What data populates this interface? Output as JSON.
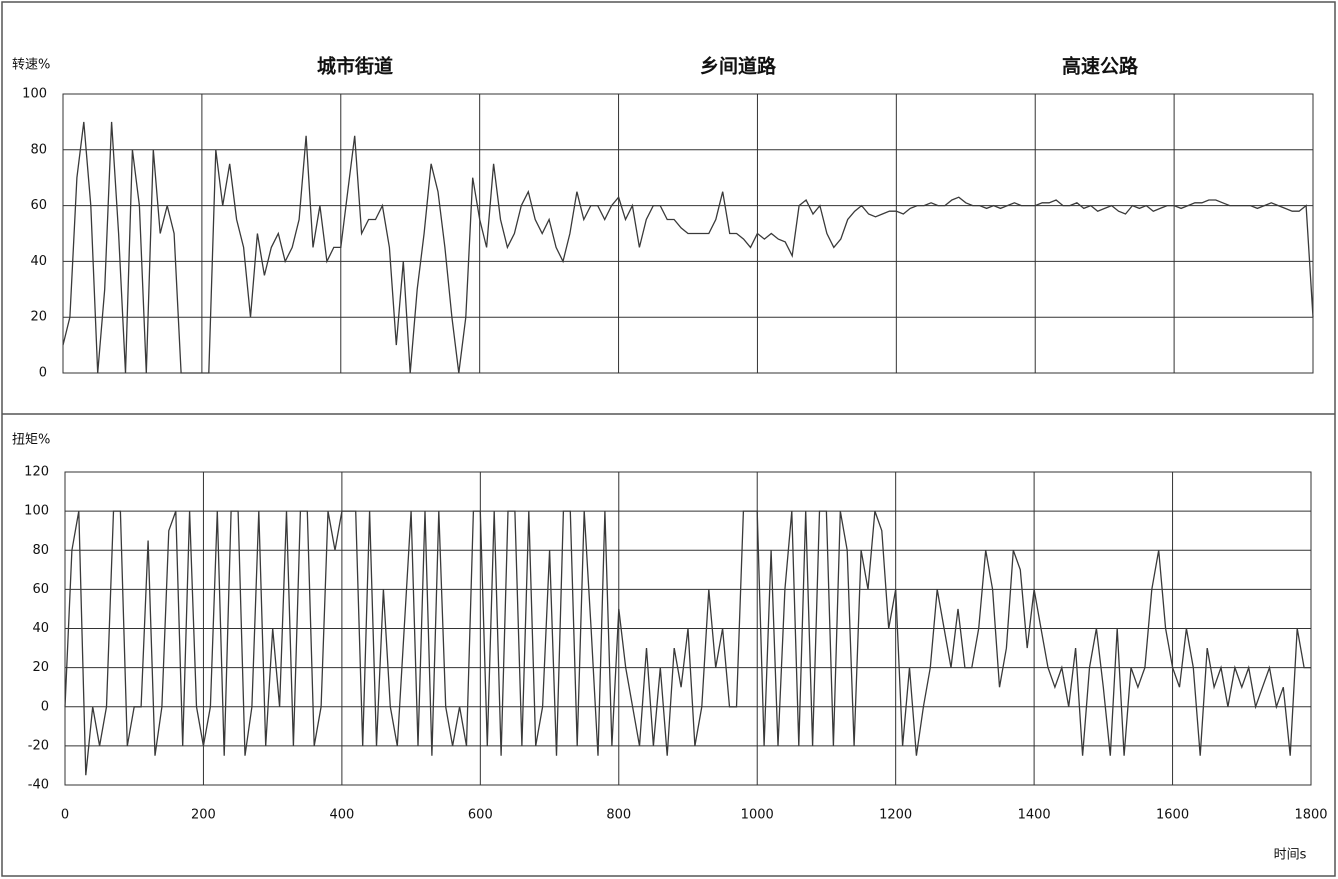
{
  "chart_data": [
    {
      "type": "line",
      "ylabel": "转速%",
      "annotations": [
        "城市街道",
        "乡间道路",
        "高速公路"
      ],
      "color": "#3a3a3a",
      "xlim": [
        0,
        1800
      ],
      "xticks": [
        0,
        200,
        400,
        600,
        800,
        1000,
        1200,
        1400,
        1600,
        1800
      ],
      "ylim": [
        0,
        100
      ],
      "yticks": [
        0,
        20,
        40,
        60,
        80,
        100
      ],
      "grid": true,
      "x": [
        0,
        10,
        20,
        30,
        40,
        50,
        60,
        70,
        80,
        90,
        100,
        110,
        120,
        130,
        140,
        150,
        160,
        170,
        180,
        190,
        200,
        210,
        220,
        230,
        240,
        250,
        260,
        270,
        280,
        290,
        300,
        310,
        320,
        330,
        340,
        350,
        360,
        370,
        380,
        390,
        400,
        410,
        420,
        430,
        440,
        450,
        460,
        470,
        480,
        490,
        500,
        510,
        520,
        530,
        540,
        550,
        560,
        570,
        580,
        590,
        600,
        610,
        620,
        630,
        640,
        650,
        660,
        670,
        680,
        690,
        700,
        710,
        720,
        730,
        740,
        750,
        760,
        770,
        780,
        790,
        800,
        810,
        820,
        830,
        840,
        850,
        860,
        870,
        880,
        890,
        900,
        910,
        920,
        930,
        940,
        950,
        960,
        970,
        980,
        990,
        1000,
        1010,
        1020,
        1030,
        1040,
        1050,
        1060,
        1070,
        1080,
        1090,
        1100,
        1110,
        1120,
        1130,
        1140,
        1150,
        1160,
        1170,
        1180,
        1190,
        1200,
        1210,
        1220,
        1230,
        1240,
        1250,
        1260,
        1270,
        1280,
        1290,
        1300,
        1310,
        1320,
        1330,
        1340,
        1350,
        1360,
        1370,
        1380,
        1390,
        1400,
        1410,
        1420,
        1430,
        1440,
        1450,
        1460,
        1470,
        1480,
        1490,
        1500,
        1510,
        1520,
        1530,
        1540,
        1550,
        1560,
        1570,
        1580,
        1590,
        1600,
        1610,
        1620,
        1630,
        1640,
        1650,
        1660,
        1670,
        1680,
        1690,
        1700,
        1710,
        1720,
        1730,
        1740,
        1750,
        1760,
        1770,
        1780,
        1790,
        1800
      ],
      "values": [
        10,
        20,
        70,
        90,
        60,
        0,
        30,
        90,
        50,
        0,
        80,
        60,
        0,
        80,
        50,
        60,
        50,
        0,
        0,
        0,
        0,
        0,
        80,
        60,
        75,
        55,
        45,
        20,
        50,
        35,
        45,
        50,
        40,
        45,
        55,
        85,
        45,
        60,
        40,
        45,
        45,
        65,
        85,
        50,
        55,
        55,
        60,
        45,
        10,
        40,
        0,
        30,
        50,
        75,
        65,
        45,
        20,
        0,
        20,
        70,
        55,
        45,
        75,
        55,
        45,
        50,
        60,
        65,
        55,
        50,
        55,
        45,
        40,
        50,
        65,
        55,
        60,
        60,
        55,
        60,
        63,
        55,
        60,
        45,
        55,
        60,
        60,
        55,
        55,
        52,
        50,
        50,
        50,
        50,
        55,
        65,
        50,
        50,
        48,
        45,
        50,
        48,
        50,
        48,
        47,
        42,
        60,
        62,
        57,
        60,
        50,
        45,
        48,
        55,
        58,
        60,
        57,
        56,
        57,
        58,
        58,
        57,
        59,
        60,
        60,
        61,
        60,
        60,
        62,
        63,
        61,
        60,
        60,
        59,
        60,
        59,
        60,
        61,
        60,
        60,
        60,
        61,
        61,
        62,
        60,
        60,
        61,
        59,
        60,
        58,
        59,
        60,
        58,
        57,
        60,
        59,
        60,
        58,
        59,
        60,
        60,
        59,
        60,
        61,
        61,
        62,
        62,
        61,
        60,
        60,
        60,
        60,
        59,
        60,
        61,
        60,
        59,
        58,
        58,
        60,
        20
      ]
    },
    {
      "type": "line",
      "ylabel": "扭矩%",
      "xlabel": "时间s",
      "color": "#3a3a3a",
      "xlim": [
        0,
        1800
      ],
      "xticks": [
        0,
        200,
        400,
        600,
        800,
        1000,
        1200,
        1400,
        1600,
        1800
      ],
      "ylim": [
        -40,
        120
      ],
      "yticks": [
        -40,
        -20,
        0,
        20,
        40,
        60,
        80,
        100,
        120
      ],
      "grid": true,
      "x": [
        0,
        10,
        20,
        30,
        40,
        50,
        60,
        70,
        80,
        90,
        100,
        110,
        120,
        130,
        140,
        150,
        160,
        170,
        180,
        190,
        200,
        210,
        220,
        230,
        240,
        250,
        260,
        270,
        280,
        290,
        300,
        310,
        320,
        330,
        340,
        350,
        360,
        370,
        380,
        390,
        400,
        410,
        420,
        430,
        440,
        450,
        460,
        470,
        480,
        490,
        500,
        510,
        520,
        530,
        540,
        550,
        560,
        570,
        580,
        590,
        600,
        610,
        620,
        630,
        640,
        650,
        660,
        670,
        680,
        690,
        700,
        710,
        720,
        730,
        740,
        750,
        760,
        770,
        780,
        790,
        800,
        810,
        820,
        830,
        840,
        850,
        860,
        870,
        880,
        890,
        900,
        910,
        920,
        930,
        940,
        950,
        960,
        970,
        980,
        990,
        1000,
        1010,
        1020,
        1030,
        1040,
        1050,
        1060,
        1070,
        1080,
        1090,
        1100,
        1110,
        1120,
        1130,
        1140,
        1150,
        1160,
        1170,
        1180,
        1190,
        1200,
        1210,
        1220,
        1230,
        1240,
        1250,
        1260,
        1270,
        1280,
        1290,
        1300,
        1310,
        1320,
        1330,
        1340,
        1350,
        1360,
        1370,
        1380,
        1390,
        1400,
        1410,
        1420,
        1430,
        1440,
        1450,
        1460,
        1470,
        1480,
        1490,
        1500,
        1510,
        1520,
        1530,
        1540,
        1550,
        1560,
        1570,
        1580,
        1590,
        1600,
        1610,
        1620,
        1630,
        1640,
        1650,
        1660,
        1670,
        1680,
        1690,
        1700,
        1710,
        1720,
        1730,
        1740,
        1750,
        1760,
        1770,
        1780,
        1790,
        1800
      ],
      "values": [
        0,
        80,
        100,
        -35,
        0,
        -20,
        0,
        100,
        100,
        -20,
        0,
        0,
        85,
        -25,
        0,
        90,
        100,
        -20,
        100,
        0,
        -20,
        0,
        100,
        -25,
        100,
        100,
        -25,
        0,
        100,
        -20,
        40,
        0,
        100,
        -20,
        100,
        100,
        -20,
        0,
        100,
        80,
        100,
        100,
        100,
        -20,
        100,
        -20,
        60,
        0,
        -20,
        40,
        100,
        -20,
        100,
        -25,
        100,
        0,
        -20,
        0,
        -20,
        100,
        100,
        -20,
        100,
        -25,
        100,
        100,
        -20,
        100,
        -20,
        0,
        80,
        -25,
        100,
        100,
        -20,
        100,
        40,
        -25,
        100,
        -20,
        50,
        20,
        0,
        -20,
        30,
        -20,
        20,
        -25,
        30,
        10,
        40,
        -20,
        0,
        60,
        20,
        40,
        0,
        0,
        100,
        100,
        100,
        -20,
        80,
        -20,
        60,
        100,
        -20,
        100,
        -20,
        100,
        100,
        -20,
        100,
        80,
        -20,
        80,
        60,
        100,
        90,
        40,
        60,
        -20,
        20,
        -25,
        0,
        20,
        60,
        40,
        20,
        50,
        20,
        20,
        40,
        80,
        60,
        10,
        30,
        80,
        70,
        30,
        60,
        40,
        20,
        10,
        20,
        0,
        30,
        -25,
        20,
        40,
        10,
        -25,
        40,
        -25,
        20,
        10,
        20,
        60,
        80,
        40,
        20,
        10,
        40,
        20,
        -25,
        30,
        10,
        20,
        0,
        20,
        10,
        20,
        0,
        10,
        20,
        0,
        10,
        -25,
        40,
        20,
        20
      ]
    }
  ]
}
